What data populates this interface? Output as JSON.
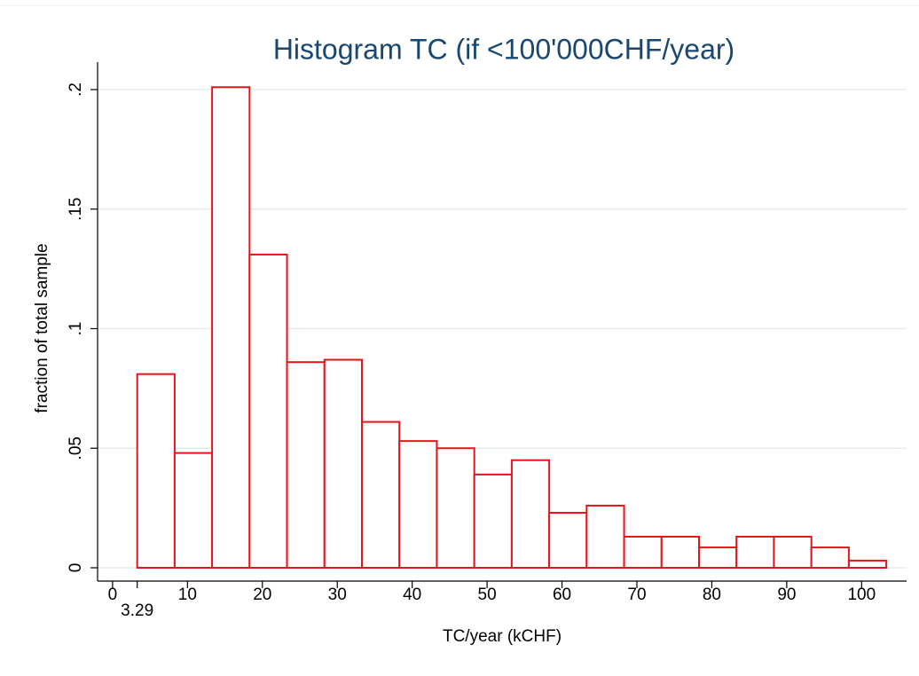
{
  "chart_data": {
    "type": "histogram",
    "title": "Histogram TC (if <100'000CHF/year)",
    "x_label": "TC/year (kCHF)",
    "y_label": "fraction of total sample",
    "bins": [
      3.29,
      8.29,
      13.29,
      18.29,
      23.29,
      28.29,
      33.29,
      38.29,
      43.29,
      48.29,
      53.29,
      58.29,
      63.29,
      68.29,
      73.29,
      78.29,
      83.29,
      88.29,
      93.29,
      98.29,
      103.29
    ],
    "values": [
      0.081,
      0.048,
      0.201,
      0.131,
      0.086,
      0.087,
      0.061,
      0.053,
      0.05,
      0.039,
      0.045,
      0.023,
      0.026,
      0.013,
      0.013,
      0.0085,
      0.013,
      0.013,
      0.0085,
      0.003
    ],
    "color": "#e8141c",
    "xlim": [
      -2,
      106
    ],
    "ylim": [
      0,
      0.21
    ],
    "xticks": [
      0,
      3.29,
      10,
      20,
      30,
      40,
      50,
      60,
      70,
      80,
      90,
      100
    ],
    "yticks": [
      0,
      {
        "value": 0.05,
        "label": ".05"
      },
      {
        "value": 0.1,
        "label": ".1"
      },
      {
        "value": 0.15,
        "label": ".15"
      },
      {
        "value": 0.2,
        "label": ".2"
      }
    ],
    "grid": true
  }
}
